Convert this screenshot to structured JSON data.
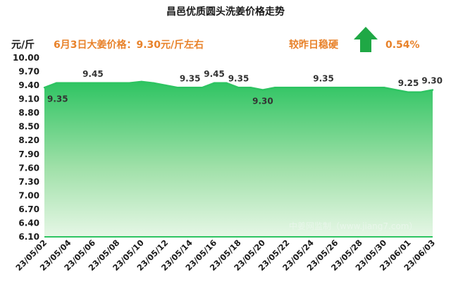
{
  "chart_data": {
    "type": "area",
    "title": "昌邑优质圆头洗姜价格走势",
    "ylabel": "元/斤",
    "headline": "6月3日大姜价格：9.30元/斤左右",
    "trend_text": "较昨日稳硬",
    "trend_direction": "up",
    "change_percent": "0.54%",
    "watermark": "中姜网监制（www.jiang7.com）",
    "ylim": [
      6.1,
      10.0
    ],
    "yticks": [
      "10.00",
      "9.70",
      "9.40",
      "9.10",
      "8.80",
      "8.50",
      "8.20",
      "7.90",
      "7.60",
      "7.30",
      "7.00",
      "6.70",
      "6.40",
      "6.10"
    ],
    "xticks": [
      "23/05/02",
      "23/05/04",
      "23/05/06",
      "23/05/08",
      "23/05/10",
      "23/05/12",
      "23/05/14",
      "23/05/16",
      "23/05/18",
      "23/05/20",
      "23/05/22",
      "23/05/24",
      "23/05/26",
      "23/05/28",
      "23/05/30",
      "23/06/01",
      "23/06/03"
    ],
    "x": [
      "23/05/02",
      "23/05/03",
      "23/05/04",
      "23/05/05",
      "23/05/06",
      "23/05/07",
      "23/05/08",
      "23/05/09",
      "23/05/10",
      "23/05/11",
      "23/05/12",
      "23/05/13",
      "23/05/14",
      "23/05/15",
      "23/05/16",
      "23/05/17",
      "23/05/18",
      "23/05/19",
      "23/05/20",
      "23/05/21",
      "23/05/22",
      "23/05/23",
      "23/05/24",
      "23/05/25",
      "23/05/26",
      "23/05/27",
      "23/05/28",
      "23/05/29",
      "23/05/30",
      "23/05/31",
      "23/06/01",
      "23/06/02",
      "23/06/03"
    ],
    "series": [
      {
        "values": [
          9.35,
          9.45,
          9.45,
          9.45,
          9.45,
          9.45,
          9.45,
          9.45,
          9.48,
          9.45,
          9.4,
          9.35,
          9.35,
          9.35,
          9.45,
          9.45,
          9.35,
          9.35,
          9.3,
          9.35,
          9.35,
          9.35,
          9.35,
          9.35,
          9.35,
          9.35,
          9.35,
          9.35,
          9.35,
          9.3,
          9.25,
          9.25,
          9.3
        ],
        "color": "#2ec462"
      }
    ],
    "data_labels": [
      {
        "x": "23/05/02",
        "text": "9.35",
        "pos": "below"
      },
      {
        "x": "23/05/06",
        "text": "9.45",
        "pos": "above"
      },
      {
        "x": "23/05/14",
        "text": "9.35",
        "pos": "above"
      },
      {
        "x": "23/05/16",
        "text": "9.45",
        "pos": "above"
      },
      {
        "x": "23/05/18",
        "text": "9.35",
        "pos": "above"
      },
      {
        "x": "23/05/20",
        "text": "9.30",
        "pos": "below"
      },
      {
        "x": "23/05/25",
        "text": "9.35",
        "pos": "above"
      },
      {
        "x": "23/06/01",
        "text": "9.25",
        "pos": "above"
      },
      {
        "x": "23/06/03",
        "text": "9.30",
        "pos": "above"
      }
    ],
    "grid": false,
    "legend": "none"
  }
}
